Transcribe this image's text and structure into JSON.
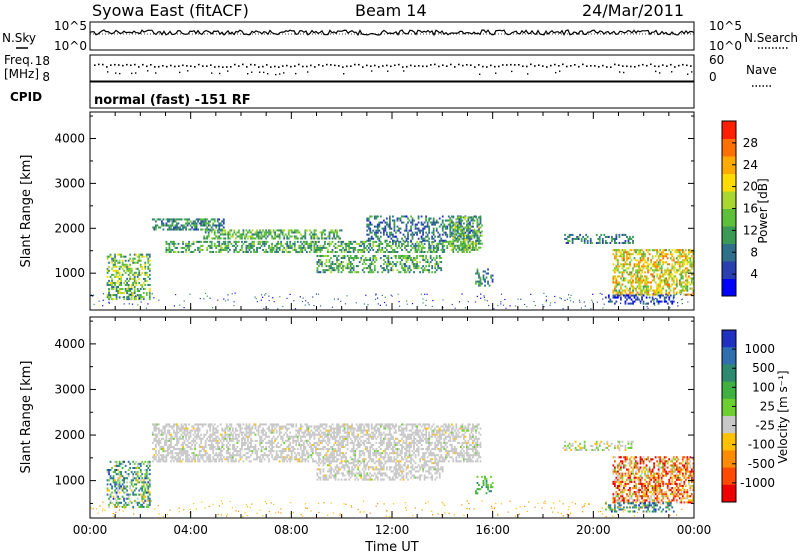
{
  "header": {
    "title": "Syowa East (fitACF)",
    "beam": "Beam 14",
    "date": "24/Mar/2011"
  },
  "top_panels": {
    "nsky_label": "N.Sky",
    "nsearch_label": "N.Search",
    "nsky_ticks": [
      "10^5",
      "10^0"
    ],
    "nsearch_ticks": [
      "10^5",
      "10^0"
    ],
    "freq_label_1": "Freq.",
    "freq_label_2": "[MHz]",
    "freq_ticks": [
      "18",
      "8"
    ],
    "nave_label": "Nave",
    "nave_ticks": [
      "60",
      "0"
    ],
    "cpid_label": "CPID",
    "cpid_text": "normal (fast) -151 RF"
  },
  "colors": {
    "power_scale": [
      "#0000ff",
      "#2a3fb0",
      "#2f6f8a",
      "#3a9a55",
      "#5ec03a",
      "#a8d830",
      "#ffdc00",
      "#ffaa00",
      "#ff7000",
      "#ff2000"
    ],
    "velocity_scale": [
      "#2030c0",
      "#2f6fb0",
      "#2e8a6e",
      "#40b040",
      "#6cd030",
      "#c8c8c8",
      "#ffc000",
      "#ff8c00",
      "#ff4a00",
      "#ee0000"
    ]
  },
  "chart_data": [
    {
      "type": "heatmap",
      "name": "power",
      "ylabel": "Slant Range [km]",
      "y_ticks": [
        "1000",
        "2000",
        "3000",
        "4000"
      ],
      "ylim": [
        180,
        4590
      ],
      "xlim": [
        "00:00",
        "24:00"
      ],
      "colorbar_label": "Power [dB]",
      "colorbar_ticks": [
        "4",
        "8",
        "12",
        "16",
        "20",
        "24",
        "28"
      ],
      "colorbar_range": [
        0,
        32
      ],
      "echo_regions": [
        {
          "t0": 0.7,
          "t1": 2.4,
          "r0": 400,
          "r1": 1400,
          "density": 0.45,
          "value": 14,
          "spread": 7
        },
        {
          "t0": 2.5,
          "t1": 5.3,
          "r0": 1950,
          "r1": 2200,
          "density": 0.55,
          "value": 10,
          "spread": 5
        },
        {
          "t0": 4.5,
          "t1": 10.0,
          "r0": 1750,
          "r1": 1950,
          "density": 0.55,
          "value": 13,
          "spread": 5
        },
        {
          "t0": 3.0,
          "t1": 15.3,
          "r0": 1450,
          "r1": 1700,
          "density": 0.5,
          "value": 12,
          "spread": 5
        },
        {
          "t0": 9.0,
          "t1": 14.0,
          "r0": 1000,
          "r1": 1400,
          "density": 0.45,
          "value": 12,
          "spread": 6
        },
        {
          "t0": 11.0,
          "t1": 15.5,
          "r0": 1700,
          "r1": 2250,
          "density": 0.35,
          "value": 8,
          "spread": 5
        },
        {
          "t0": 14.3,
          "t1": 15.6,
          "r0": 1500,
          "r1": 2250,
          "density": 0.45,
          "value": 14,
          "spread": 6
        },
        {
          "t0": 15.3,
          "t1": 16.0,
          "r0": 700,
          "r1": 1100,
          "density": 0.35,
          "value": 10,
          "spread": 5
        },
        {
          "t0": 18.8,
          "t1": 21.6,
          "r0": 1650,
          "r1": 1850,
          "density": 0.35,
          "value": 9,
          "spread": 5
        },
        {
          "t0": 20.8,
          "t1": 24.0,
          "r0": 500,
          "r1": 1500,
          "density": 0.55,
          "value": 20,
          "spread": 8
        },
        {
          "t0": 20.5,
          "t1": 23.2,
          "r0": 300,
          "r1": 500,
          "density": 0.4,
          "value": 5,
          "spread": 3
        }
      ]
    },
    {
      "type": "heatmap",
      "name": "velocity",
      "ylabel": "Slant Range [km]",
      "y_ticks": [
        "1000",
        "2000",
        "3000",
        "4000"
      ],
      "ylim": [
        180,
        4590
      ],
      "xlim": [
        "00:00",
        "24:00"
      ],
      "colorbar_label": "Velocity [m s⁻¹]",
      "colorbar_ticks": [
        "1000",
        "500",
        "100",
        "25",
        "-25",
        "-100",
        "-500",
        "-1000"
      ],
      "xlabel": "Time UT",
      "x_ticks": [
        "00:00",
        "04:00",
        "08:00",
        "12:00",
        "16:00",
        "20:00",
        "00:00"
      ],
      "echo_regions": [
        {
          "t0": 0.7,
          "t1": 2.4,
          "r0": 400,
          "r1": 1400,
          "density": 0.45,
          "value": 3,
          "spread": 3
        },
        {
          "t0": 2.5,
          "t1": 15.5,
          "r0": 1400,
          "r1": 2250,
          "density": 0.55,
          "value": 5,
          "spread": 0
        },
        {
          "t0": 9.0,
          "t1": 14.0,
          "r0": 1000,
          "r1": 1400,
          "density": 0.45,
          "value": 5,
          "spread": 0
        },
        {
          "t0": 15.3,
          "t1": 16.0,
          "r0": 700,
          "r1": 1100,
          "density": 0.35,
          "value": 3,
          "spread": 1
        },
        {
          "t0": 18.8,
          "t1": 21.6,
          "r0": 1650,
          "r1": 1850,
          "density": 0.35,
          "value": 5,
          "spread": 1
        },
        {
          "t0": 20.8,
          "t1": 24.0,
          "r0": 500,
          "r1": 1500,
          "density": 0.55,
          "value": 7,
          "spread": 3
        },
        {
          "t0": 20.5,
          "t1": 23.2,
          "r0": 300,
          "r1": 500,
          "density": 0.4,
          "value": 2,
          "spread": 2
        }
      ]
    }
  ]
}
